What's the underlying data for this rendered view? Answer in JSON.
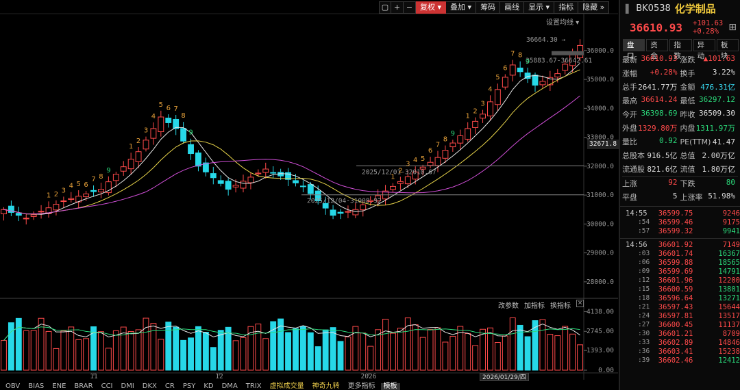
{
  "toolbar": {
    "items": [
      "复权",
      "叠加",
      "筹码",
      "画线",
      "显示",
      "指标",
      "隐藏"
    ],
    "active": "复权",
    "ma_setting": "设置均线"
  },
  "chart_data": {
    "type": "candlestick",
    "ylim": [
      27500,
      36800
    ],
    "y_ticks": [
      "36000.0",
      "35000.0",
      "34000.0",
      "33000.0",
      "32000.0",
      "31000.0",
      "30000.0",
      "29000.0",
      "28000.0"
    ],
    "x_labels": [
      "11",
      "12",
      "2026"
    ],
    "current_price_label": "32671.8",
    "annotations": {
      "high": "36664.30",
      "range_top": "35883.67-36642.61",
      "level_mid": "2025/12/01-32010.67",
      "level_low": "2025/12/04-31008.92"
    },
    "td_counts": [
      1,
      2,
      3,
      4,
      5,
      6,
      7,
      8,
      9,
      1,
      2,
      3,
      4,
      5,
      6,
      7,
      8,
      9,
      1,
      2,
      3,
      4,
      5,
      6,
      7,
      8,
      9,
      1,
      2,
      3,
      4,
      5,
      6,
      7,
      8,
      9
    ],
    "volume": {
      "y_ticks": [
        "4138.00",
        "2745.00",
        "1393.00",
        "0.00"
      ],
      "ylim": [
        0,
        4400
      ],
      "actions": [
        "改参数",
        "加指标",
        "换指标"
      ]
    },
    "date_cursor": "2026/01/29/四"
  },
  "indicator_tabs": [
    "OBV",
    "BIAS",
    "ENE",
    "BRAR",
    "CCI",
    "DMI",
    "DKX",
    "CR",
    "PSY",
    "KD",
    "DMA",
    "TRIX",
    "虚拟成交量",
    "神奇九转",
    "更多指标",
    "模板"
  ],
  "stock": {
    "code": "BK0538",
    "name": "化学制品",
    "price": "36610.93",
    "change": "+101.63",
    "change_pct": "+0.28%"
  },
  "panel_tabs": [
    "盘口",
    "资金",
    "指数",
    "异动",
    "板块"
  ],
  "quote": [
    [
      [
        "最新",
        "36610.93",
        "red"
      ],
      [
        "涨跌",
        "▲101.63",
        "red"
      ]
    ],
    [
      [
        "涨幅",
        "+0.28%",
        "red"
      ],
      [
        "换手",
        "3.22%",
        "white"
      ]
    ],
    [
      [
        "总手",
        "2641.77万",
        "white"
      ],
      [
        "金额",
        "476.31亿",
        "cyan"
      ]
    ],
    [
      [
        "最高",
        "36614.24",
        "red"
      ],
      [
        "最低",
        "36297.12",
        "green"
      ]
    ],
    [
      [
        "今开",
        "36398.69",
        "green"
      ],
      [
        "昨收",
        "36509.30",
        "white"
      ]
    ],
    [
      [
        "外盘",
        "1329.80万",
        "red"
      ],
      [
        "内盘",
        "1311.97万",
        "green"
      ]
    ],
    [
      [
        "量比",
        "0.92",
        "green"
      ],
      [
        "PE(TTM)",
        "41.47",
        "white"
      ]
    ],
    [
      [
        "总股本",
        "916.5亿",
        "white"
      ],
      [
        "总值",
        "2.00万亿",
        "white"
      ]
    ],
    [
      [
        "流通股",
        "821.6亿",
        "white"
      ],
      [
        "流值",
        "1.80万亿",
        "white"
      ]
    ],
    [
      [
        "上涨",
        "92",
        "red"
      ],
      [
        "下跌",
        "80",
        "green"
      ]
    ],
    [
      [
        "平盘",
        "5",
        "white"
      ],
      [
        "上涨率",
        "51.98%",
        "white"
      ]
    ]
  ],
  "ticks": [
    {
      "time": "14:55",
      "price": "36599.75",
      "vol": "9246",
      "color": "red",
      "major": true
    },
    {
      "time": ":54",
      "price": "36599.46",
      "vol": "9175",
      "color": "red",
      "major": false
    },
    {
      "time": ":57",
      "price": "36599.32",
      "vol": "9941",
      "color": "green",
      "major": false
    },
    {
      "time": "14:56",
      "price": "36601.92",
      "vol": "7149",
      "color": "red",
      "major": true
    },
    {
      "time": ":03",
      "price": "36601.74",
      "vol": "16367",
      "color": "green",
      "major": false
    },
    {
      "time": ":06",
      "price": "36599.88",
      "vol": "18565",
      "color": "green",
      "major": false
    },
    {
      "time": ":09",
      "price": "36599.69",
      "vol": "14791",
      "color": "green",
      "major": false
    },
    {
      "time": ":12",
      "price": "36601.96",
      "vol": "12200",
      "color": "red",
      "major": false
    },
    {
      "time": ":15",
      "price": "36600.59",
      "vol": "13801",
      "color": "green",
      "major": false
    },
    {
      "time": ":18",
      "price": "36596.64",
      "vol": "13271",
      "color": "green",
      "major": false
    },
    {
      "time": ":21",
      "price": "36597.43",
      "vol": "15644",
      "color": "red",
      "major": false
    },
    {
      "time": ":24",
      "price": "36597.81",
      "vol": "13517",
      "color": "red",
      "major": false
    },
    {
      "time": ":27",
      "price": "36600.45",
      "vol": "11137",
      "color": "red",
      "major": false
    },
    {
      "time": ":30",
      "price": "36601.21",
      "vol": "8709",
      "color": "red",
      "major": false
    },
    {
      "time": ":33",
      "price": "36602.89",
      "vol": "14846",
      "color": "red",
      "major": false
    },
    {
      "time": ":36",
      "price": "36603.41",
      "vol": "15238",
      "color": "red",
      "major": false
    },
    {
      "time": ":39",
      "price": "36602.46",
      "vol": "12412",
      "color": "green",
      "major": false
    }
  ]
}
